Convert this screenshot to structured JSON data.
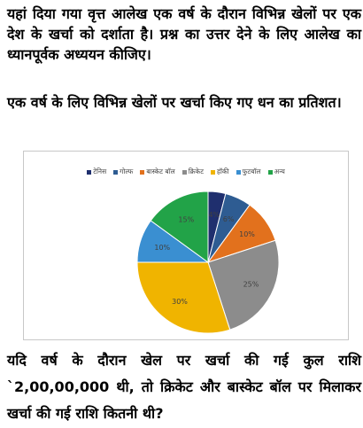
{
  "question": {
    "intro": "यहां दिया गया वृत्त आलेख एक वर्ष के दौरान विभिन्न खेलों पर एक देश के खर्चा को दर्शाता है। प्रश्न का उत्तर देने के लिए आलेख का ध्यानपूर्वक अध्ययन कीजिए।",
    "caption": "एक वर्ष के लिए विभिन्न खेलों पर खर्चा किए गए धन का प्रतिशत।",
    "prompt": "यदि वर्ष के दौरान खेल पर खर्चा की गई कुल राशि `2,00,00,000 थी, तो क्रिकेट और बास्केट बॉल पर मिलाकर खर्चा की गई राशि कितनी थी?"
  },
  "chart_data": {
    "type": "pie",
    "title": "",
    "legend_position": "top",
    "categories": [
      "टेनिस",
      "गोल्फ",
      "बास्केट बॉल",
      "क्रिकेट",
      "हॉकी",
      "फुटबॉल",
      "अन्य"
    ],
    "values": [
      4,
      6,
      10,
      25,
      30,
      10,
      15
    ],
    "labels": [
      "4%",
      "6%",
      "10%",
      "25%",
      "30%",
      "10%",
      "15%"
    ],
    "colors": [
      "#1f2f6e",
      "#2e5c92",
      "#e2711d",
      "#8c8c8c",
      "#f0b400",
      "#3a8fd1",
      "#22a348"
    ]
  }
}
